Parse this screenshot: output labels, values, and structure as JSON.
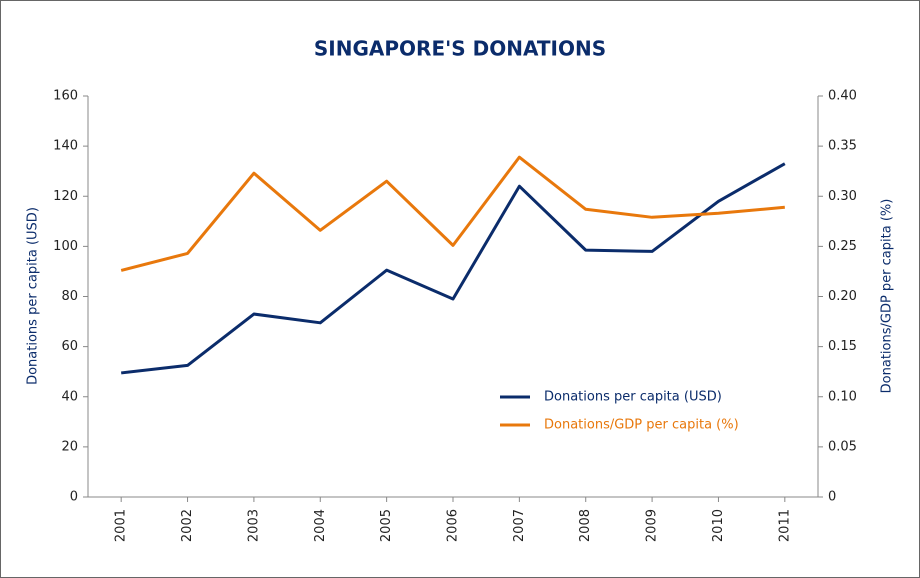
{
  "chart_data": {
    "type": "line",
    "title": "SINGAPORE'S DONATIONS",
    "ylabel": "Donations per capita (USD)",
    "y2label": "Donations/GDP per capita (%)",
    "categories": [
      "2001",
      "2002",
      "2003",
      "2004",
      "2005",
      "2006",
      "2007",
      "2008",
      "2009",
      "2010",
      "2011"
    ],
    "series": [
      {
        "name": "Donations per capita (USD)",
        "color": "#0b2c6b",
        "values": [
          49.5,
          52.5,
          73,
          69.5,
          90.5,
          79,
          124,
          98.5,
          98,
          118,
          133
        ]
      },
      {
        "name": "Donations/GDP per capita (%)",
        "color": "#e8780c",
        "axis": "y2",
        "values": [
          0.226,
          0.243,
          0.323,
          0.266,
          0.315,
          0.251,
          0.339,
          0.287,
          0.279,
          0.283,
          0.289
        ]
      }
    ],
    "ylim": [
      0,
      160
    ],
    "yticks": [
      0,
      20,
      40,
      60,
      80,
      100,
      120,
      140,
      160
    ],
    "y2lim": [
      0,
      0.4
    ],
    "y2ticks": [
      0,
      0.05,
      {
        "value": 0.1,
        "label": "0.10"
      },
      0.15,
      {
        "value": 0.2,
        "label": "0.20"
      },
      0.25,
      {
        "value": 0.3,
        "label": "0.30"
      },
      0.35,
      {
        "value": 0.4,
        "label": "0.40"
      }
    ],
    "grid": false,
    "legend": "lower right"
  }
}
